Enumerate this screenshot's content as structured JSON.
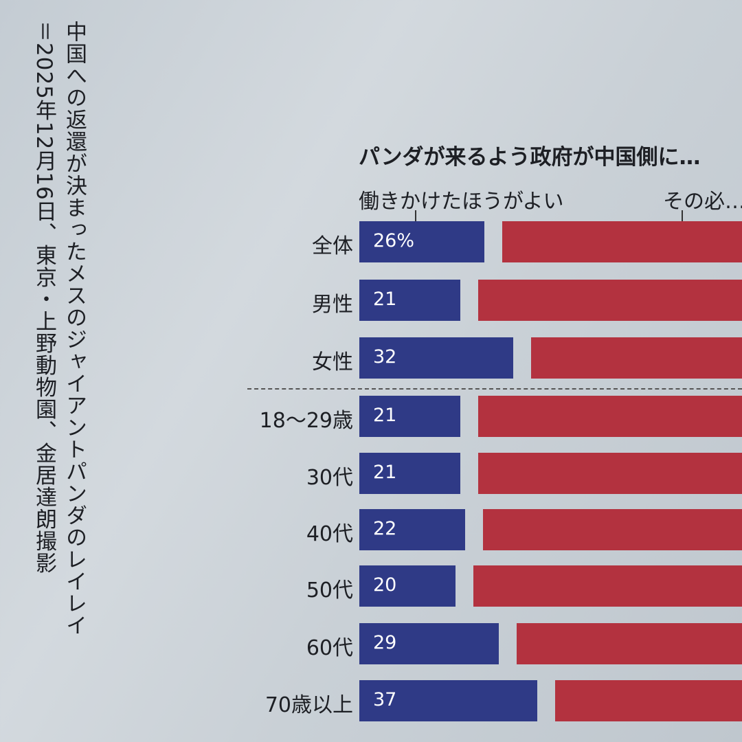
{
  "caption": {
    "line1": "中国への返還が決まったメスのジャイアントパンダのレイレイ",
    "line2": "＝2025年12月16日、東京・上野動物園、金居達朗撮影"
  },
  "chart_data": {
    "type": "bar",
    "stacked": true,
    "orientation": "horizontal",
    "title": "パンダが来るよう政府が中国側に…",
    "series": [
      {
        "name": "働きかけたほうがよい",
        "color": "#2f3a86",
        "values": [
          26,
          21,
          32,
          21,
          21,
          22,
          20,
          29,
          37
        ]
      },
      {
        "name": "その必…",
        "color": "#b3323f",
        "values": [
          null,
          null,
          null,
          null,
          null,
          null,
          null,
          null,
          null
        ]
      }
    ],
    "categories": [
      "全体",
      "男性",
      "女性",
      "18〜29歳",
      "30代",
      "40代",
      "50代",
      "60代",
      "70歳以上"
    ],
    "value_labels": [
      "26%",
      "21",
      "32",
      "21",
      "21",
      "22",
      "20",
      "29",
      "37"
    ],
    "unit": "%"
  }
}
